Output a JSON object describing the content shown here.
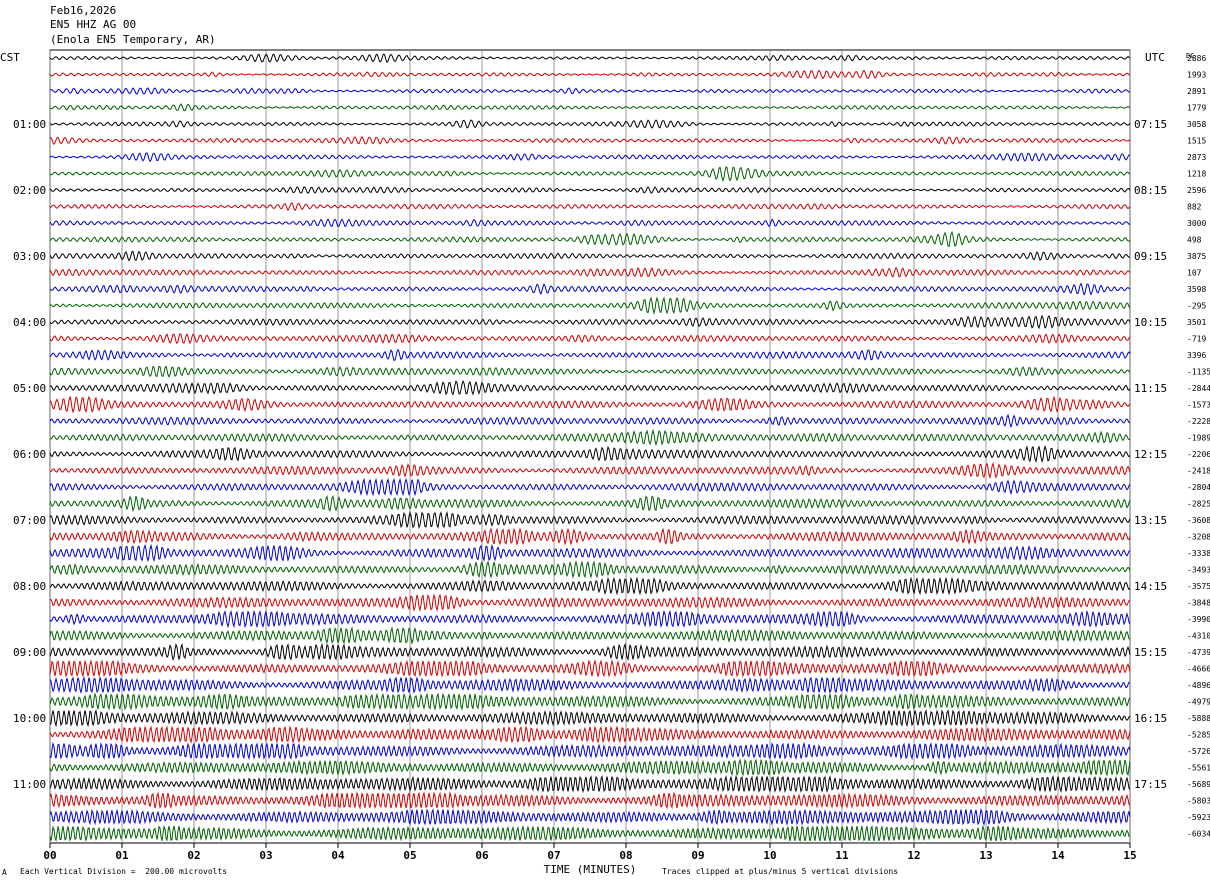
{
  "header": {
    "date": "Feb16,2026",
    "station": "EN5 HHZ AG 00",
    "location": "(Enola EN5 Temporary, AR)"
  },
  "left_zone": "CST",
  "right_zone": "UTC",
  "dc_label": "DC",
  "chart_data": {
    "type": "line",
    "title": "Feb16,2026 EN5 HHZ AG 00 (Enola EN5 Temporary, AR)",
    "xlabel": "TIME (MINUTES)",
    "xlim": [
      0,
      15
    ],
    "x_ticks": [
      "00",
      "01",
      "02",
      "03",
      "04",
      "05",
      "06",
      "07",
      "08",
      "09",
      "10",
      "11",
      "12",
      "13",
      "14",
      "15"
    ],
    "row_interval_minutes": 15,
    "trace_colors": [
      "#000000",
      "#d00000",
      "#0000d0",
      "#006000"
    ],
    "left_hour_labels": [
      "01:00",
      "02:00",
      "03:00",
      "04:00",
      "05:00",
      "06:00",
      "07:00",
      "08:00",
      "09:00",
      "10:00",
      "11:00"
    ],
    "right_hour_labels": [
      "07:15",
      "08:15",
      "09:15",
      "10:15",
      "11:15",
      "12:15",
      "13:15",
      "14:15",
      "15:15",
      "16:15",
      "17:15"
    ],
    "dc_offsets": [
      "2886",
      "1993",
      "2891",
      "1779",
      "3058",
      "1515",
      "2873",
      "1218",
      "2596",
      "882",
      "3000",
      "498",
      "3875",
      "107",
      "3598",
      "-295",
      "3501",
      "-719",
      "3396",
      "-1135",
      "-2844",
      "-1573",
      "-2228",
      "-1989",
      "-2206",
      "-2418",
      "-2804",
      "-2825",
      "-3608",
      "-3208",
      "-3338",
      "-3493",
      "-3575",
      "-3848",
      "-3990",
      "-4310",
      "-4739",
      "-4666",
      "-4896",
      "-4979",
      "-5888",
      "-5285",
      "-5726",
      "-5561",
      "-5689",
      "-5803",
      "-5923",
      "-6034"
    ],
    "amplitude_trend": "increasing with time"
  },
  "footer": {
    "scale_note": "Each Vertical Division =  200.00 microvolts",
    "clip_note": "Traces clipped at plus/minus 5 vertical divisions",
    "corner_mark": "A"
  }
}
